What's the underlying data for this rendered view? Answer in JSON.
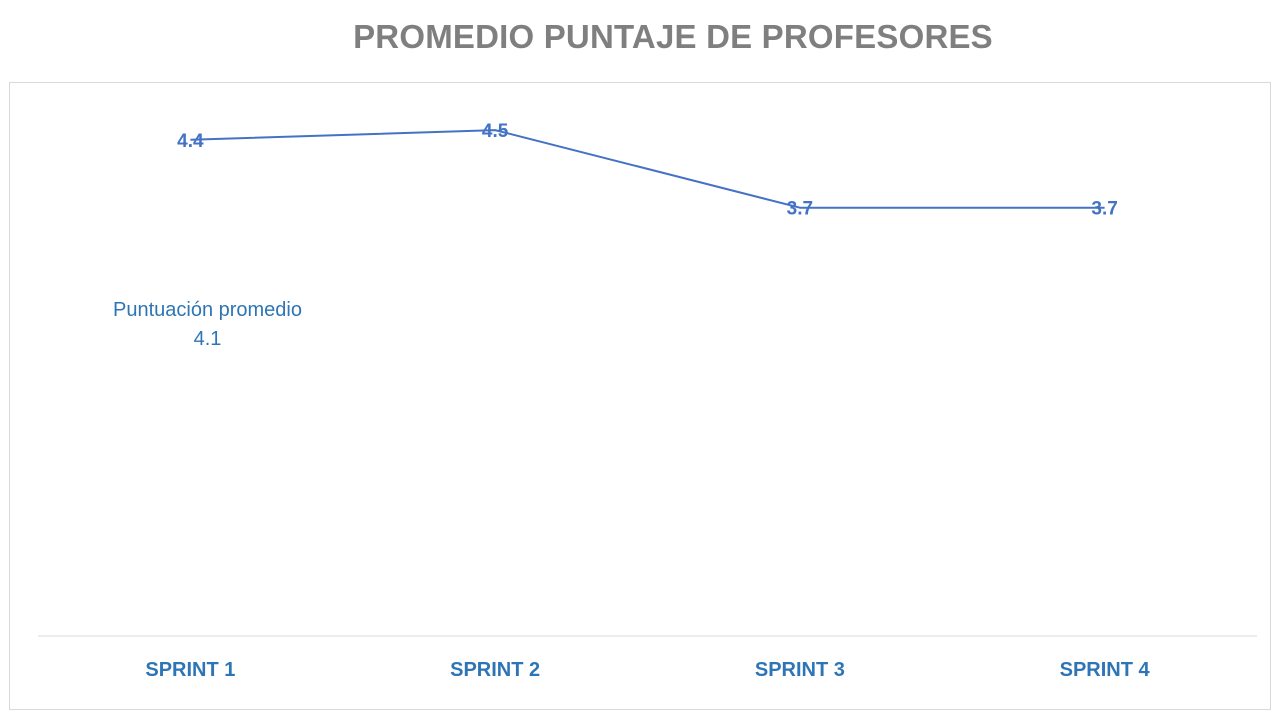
{
  "chart_data": {
    "type": "line",
    "title": "PROMEDIO PUNTAJE DE PROFESORES",
    "categories": [
      "SPRINT 1",
      "SPRINT 2",
      "SPRINT 3",
      "SPRINT 4"
    ],
    "values": [
      4.4,
      4.5,
      3.7,
      3.7
    ],
    "value_labels": [
      "4.4",
      "4.5",
      "3.7",
      "3.7"
    ],
    "xlabel": "",
    "ylabel": "",
    "ylim": [
      0,
      5
    ],
    "grid": false,
    "legend": "none",
    "line_color": "#4472c4",
    "label_color": "#2e75b6",
    "title_color": "#7f7f7f",
    "annotation": {
      "label": "Puntuación promedio",
      "value": "4.1"
    }
  }
}
